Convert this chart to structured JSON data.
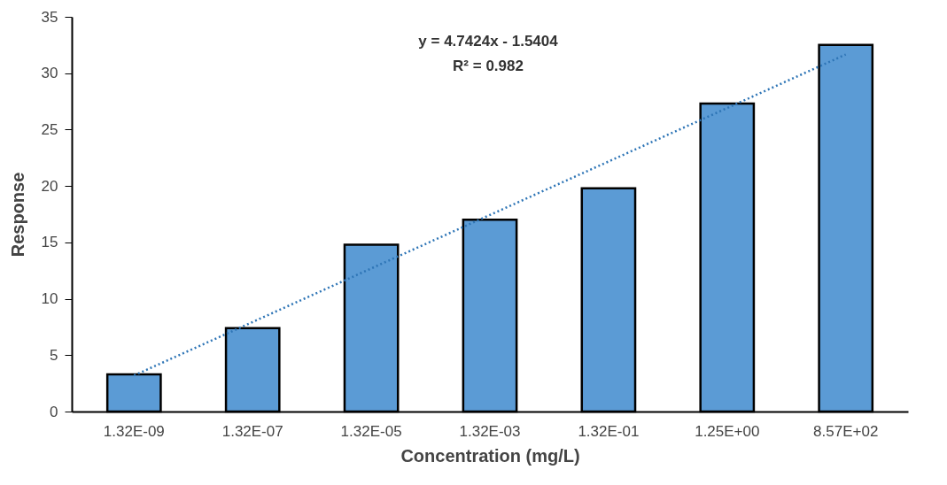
{
  "chart_data": {
    "type": "bar",
    "xlabel": "Concentration (mg/L)",
    "ylabel": "Response",
    "categories": [
      "1.32E-09",
      "1.32E-07",
      "1.32E-05",
      "1.32E-03",
      "1.32E-01",
      "1.25E+00",
      "8.57E+02"
    ],
    "series": [
      {
        "color": "#5b9bd5",
        "values": [
          3.3,
          7.4,
          14.8,
          17.0,
          19.8,
          27.3,
          32.5
        ]
      },
      {
        "type": "line",
        "color": "#2e75b6",
        "line_style": "dotted",
        "x": [
          "1.32E-09",
          "1.32E-07",
          "1.32E-05",
          "1.32E-03",
          "1.32E-01",
          "1.25E+00",
          "8.57E+02"
        ],
        "values": [
          3.2,
          7.94,
          12.69,
          17.43,
          22.17,
          26.91,
          31.66
        ]
      }
    ],
    "ylim": [
      0,
      35
    ],
    "yticks": [
      0,
      5,
      10,
      15,
      20,
      25,
      30,
      35
    ],
    "grid": false,
    "annotations": [
      "y = 4.7424x - 1.5404",
      "R² = 0.982"
    ]
  }
}
